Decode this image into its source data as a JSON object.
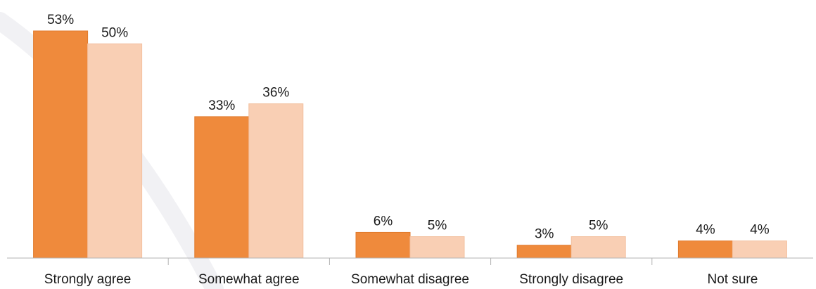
{
  "chart_data": {
    "type": "bar",
    "categories": [
      "Strongly agree",
      "Somewhat agree",
      "Somewhat disagree",
      "Strongly disagree",
      "Not sure"
    ],
    "series": [
      {
        "values": [
          53,
          33,
          6,
          3,
          4
        ],
        "labels": [
          "53%",
          "33%",
          "6%",
          "3%",
          "4%"
        ],
        "color": "#ef8a3c"
      },
      {
        "values": [
          50,
          36,
          5,
          5,
          4
        ],
        "labels": [
          "50%",
          "36%",
          "5%",
          "5%",
          "4%"
        ],
        "color": "#f9cfb4"
      }
    ],
    "ylim": [
      0,
      55
    ],
    "grid": false,
    "legend": "none",
    "axis_color": "#b3b3b3"
  }
}
